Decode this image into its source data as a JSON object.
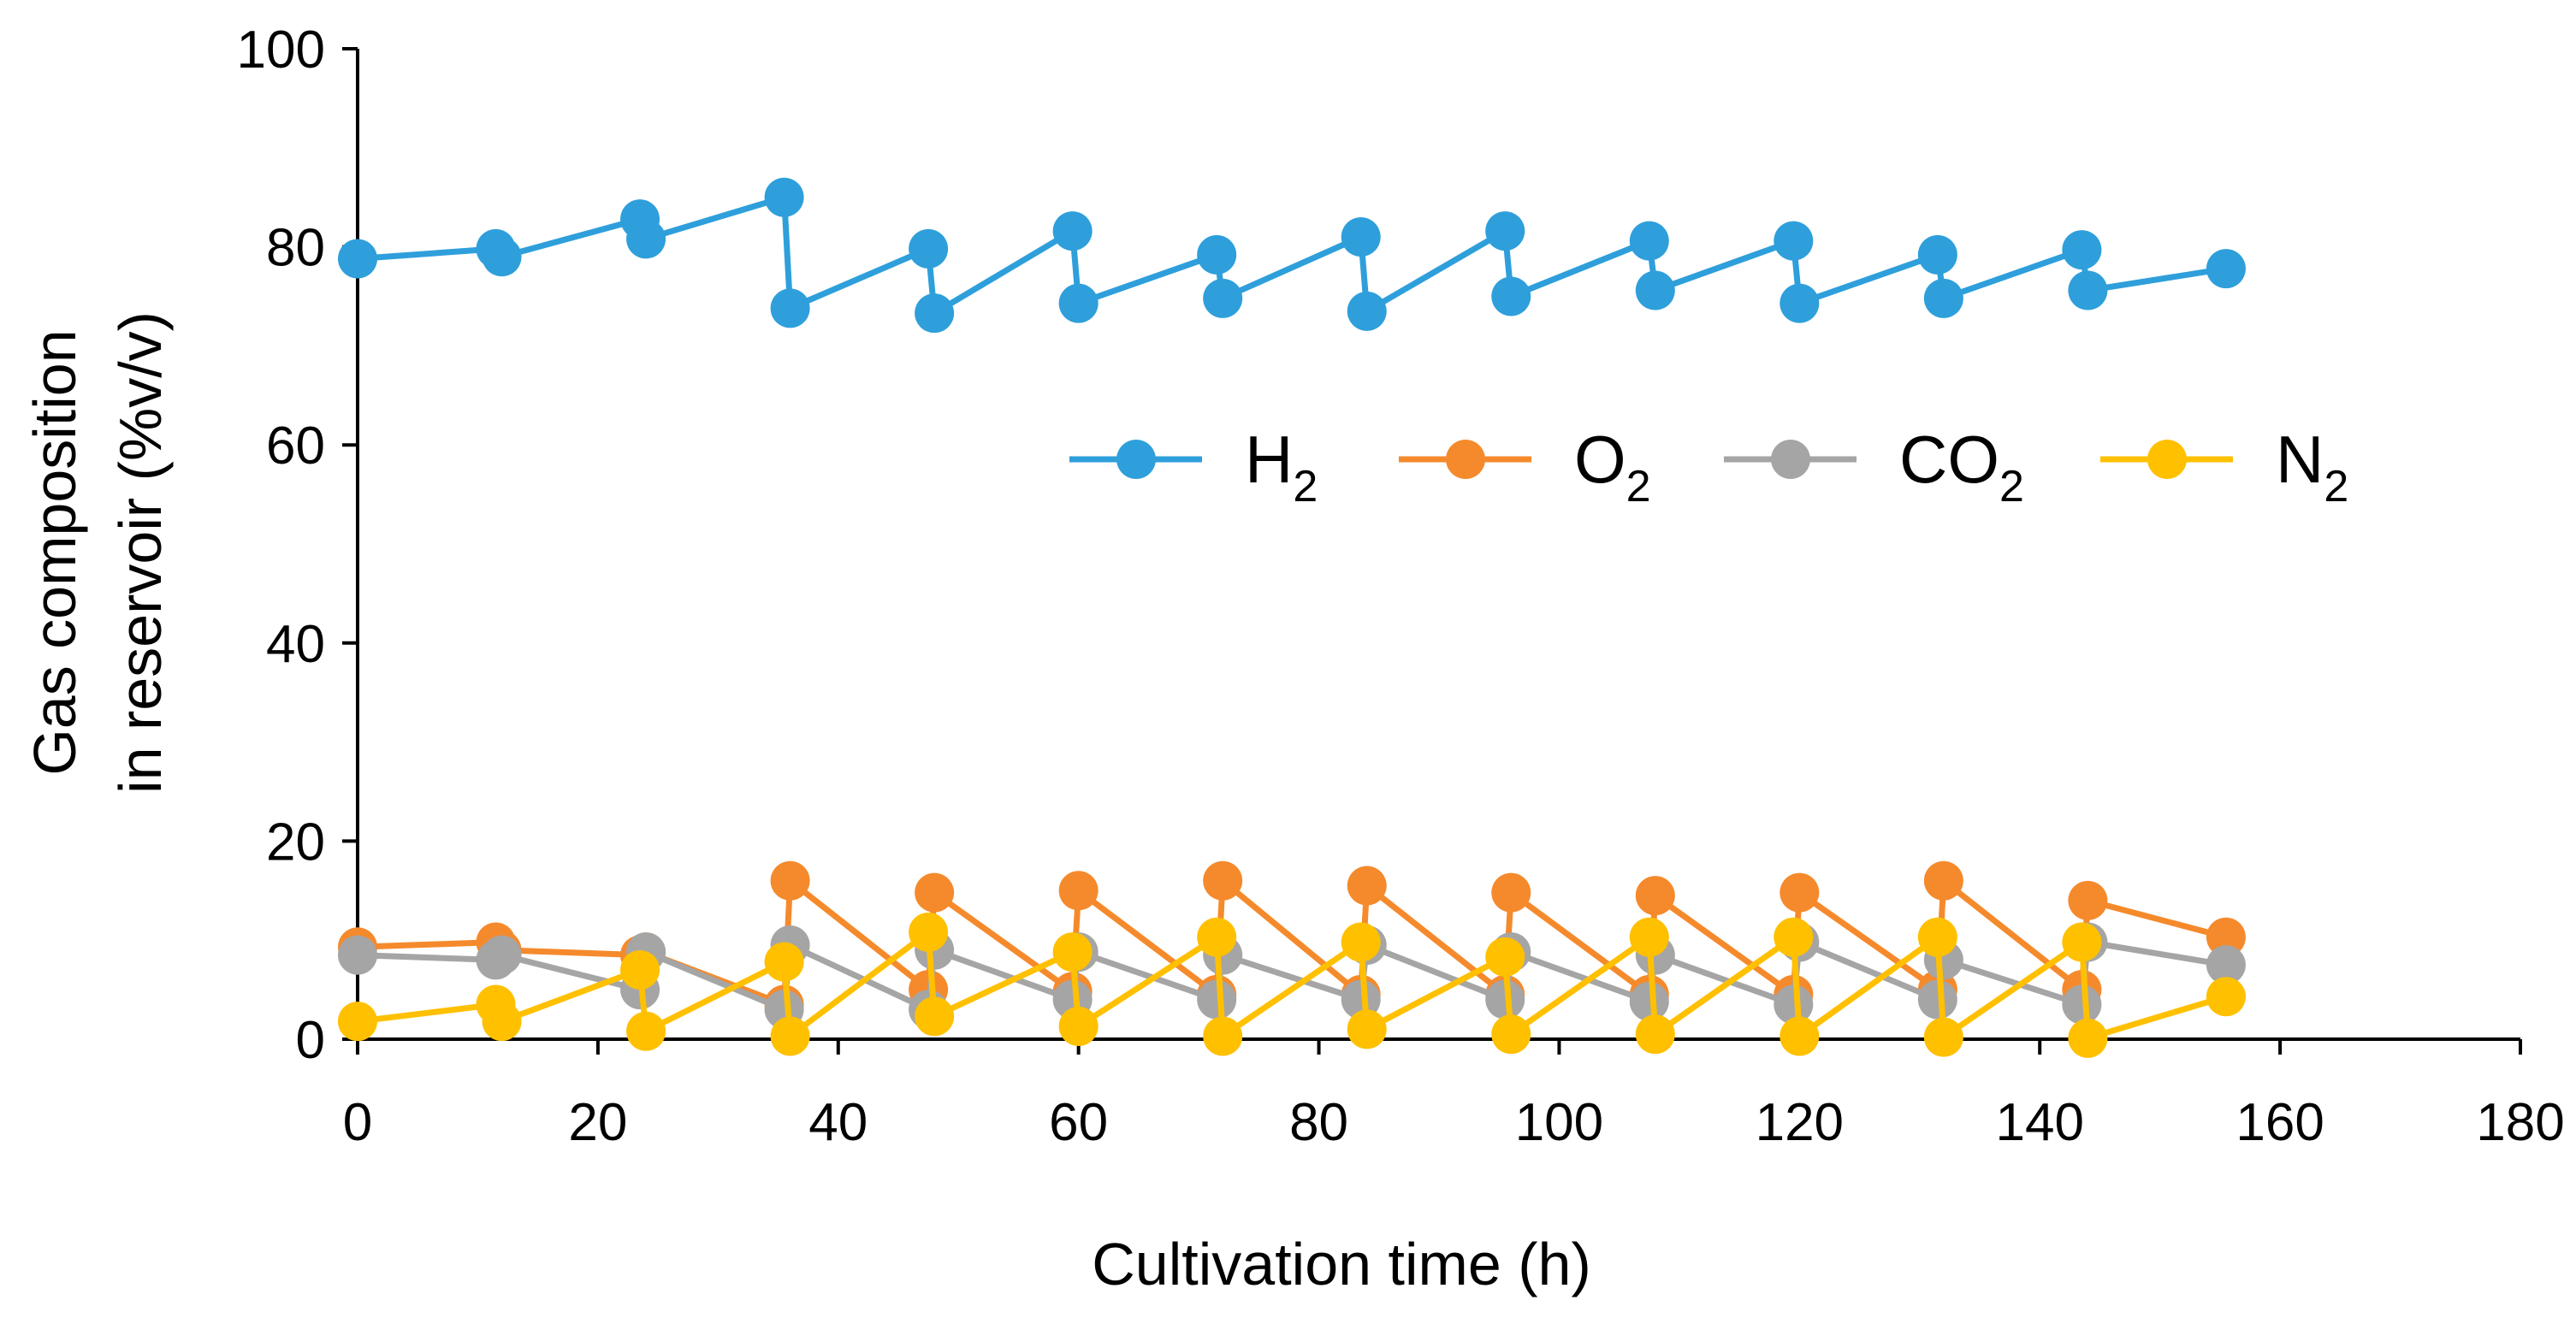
{
  "chart_data": {
    "type": "line",
    "title": "",
    "xlabel": "Cultivation time (h)",
    "ylabel_lines": [
      "Gas composition",
      "in reservoir (%v/v)"
    ],
    "xlim": [
      0,
      180
    ],
    "ylim": [
      0,
      100
    ],
    "xticks": [
      0,
      20,
      40,
      60,
      80,
      100,
      120,
      140,
      160,
      180
    ],
    "yticks": [
      0,
      20,
      40,
      60,
      80,
      100
    ],
    "grid": false,
    "legend_position": "right-middle",
    "series": [
      {
        "name": "H2",
        "legend_main": "H",
        "legend_sub": "2",
        "color": "#2E9FDB",
        "x": [
          0,
          11.5,
          12,
          23.5,
          24,
          35.5,
          36,
          47.5,
          48,
          59.5,
          60,
          71.5,
          72,
          83.5,
          84,
          95.5,
          96,
          107.5,
          108,
          119.5,
          120,
          131.5,
          132,
          143.5,
          144,
          155.5
        ],
        "y": [
          78.8,
          79.8,
          79.0,
          82.8,
          80.8,
          85.0,
          73.8,
          79.8,
          73.3,
          81.6,
          74.3,
          79.2,
          74.8,
          81.0,
          73.5,
          81.6,
          75.0,
          80.6,
          75.6,
          80.6,
          74.3,
          79.2,
          74.8,
          79.7,
          75.6,
          77.8
        ]
      },
      {
        "name": "O2",
        "legend_main": "O",
        "legend_sub": "2",
        "color": "#F58A2C",
        "x": [
          0,
          11.5,
          12,
          23.5,
          24,
          35.5,
          36,
          47.5,
          48,
          59.5,
          60,
          71.5,
          72,
          83.5,
          84,
          95.5,
          96,
          107.5,
          108,
          119.5,
          120,
          131.5,
          132,
          143.5,
          144,
          155.5
        ],
        "y": [
          9.3,
          9.8,
          9.0,
          8.5,
          8.8,
          3.5,
          16.0,
          5.0,
          14.8,
          4.8,
          15.0,
          4.5,
          16.0,
          4.5,
          15.5,
          4.5,
          14.8,
          4.5,
          14.5,
          4.5,
          14.8,
          5.0,
          16.0,
          5.0,
          14.0,
          10.3
        ]
      },
      {
        "name": "CO2",
        "legend_main": "CO",
        "legend_sub": "2",
        "color": "#A5A5A5",
        "x": [
          0,
          11.5,
          12,
          23.5,
          24,
          35.5,
          36,
          47.5,
          48,
          59.5,
          60,
          71.5,
          72,
          83.5,
          84,
          95.5,
          96,
          107.5,
          108,
          119.5,
          120,
          131.5,
          132,
          143.5,
          144,
          155.5
        ],
        "y": [
          8.5,
          8.0,
          8.5,
          5.0,
          8.8,
          3.0,
          9.5,
          3.0,
          9.0,
          4.0,
          8.8,
          4.0,
          8.5,
          4.0,
          9.5,
          4.0,
          8.8,
          3.8,
          8.5,
          3.5,
          9.8,
          4.0,
          8.0,
          3.5,
          9.8,
          7.5
        ]
      },
      {
        "name": "N2",
        "legend_main": "N",
        "legend_sub": "2",
        "color": "#FFC000",
        "x": [
          0,
          11.5,
          12,
          23.5,
          24,
          35.5,
          36,
          47.5,
          48,
          59.5,
          60,
          71.5,
          72,
          83.5,
          84,
          95.5,
          96,
          107.5,
          108,
          119.5,
          120,
          131.5,
          132,
          143.5,
          144,
          155.5
        ],
        "y": [
          1.8,
          3.5,
          1.8,
          7.0,
          0.8,
          7.8,
          0.3,
          10.8,
          2.3,
          8.8,
          1.3,
          10.3,
          0.3,
          9.8,
          1.0,
          8.3,
          0.5,
          10.3,
          0.5,
          10.3,
          0.3,
          10.3,
          0.2,
          9.8,
          0.1,
          4.3
        ]
      }
    ]
  }
}
